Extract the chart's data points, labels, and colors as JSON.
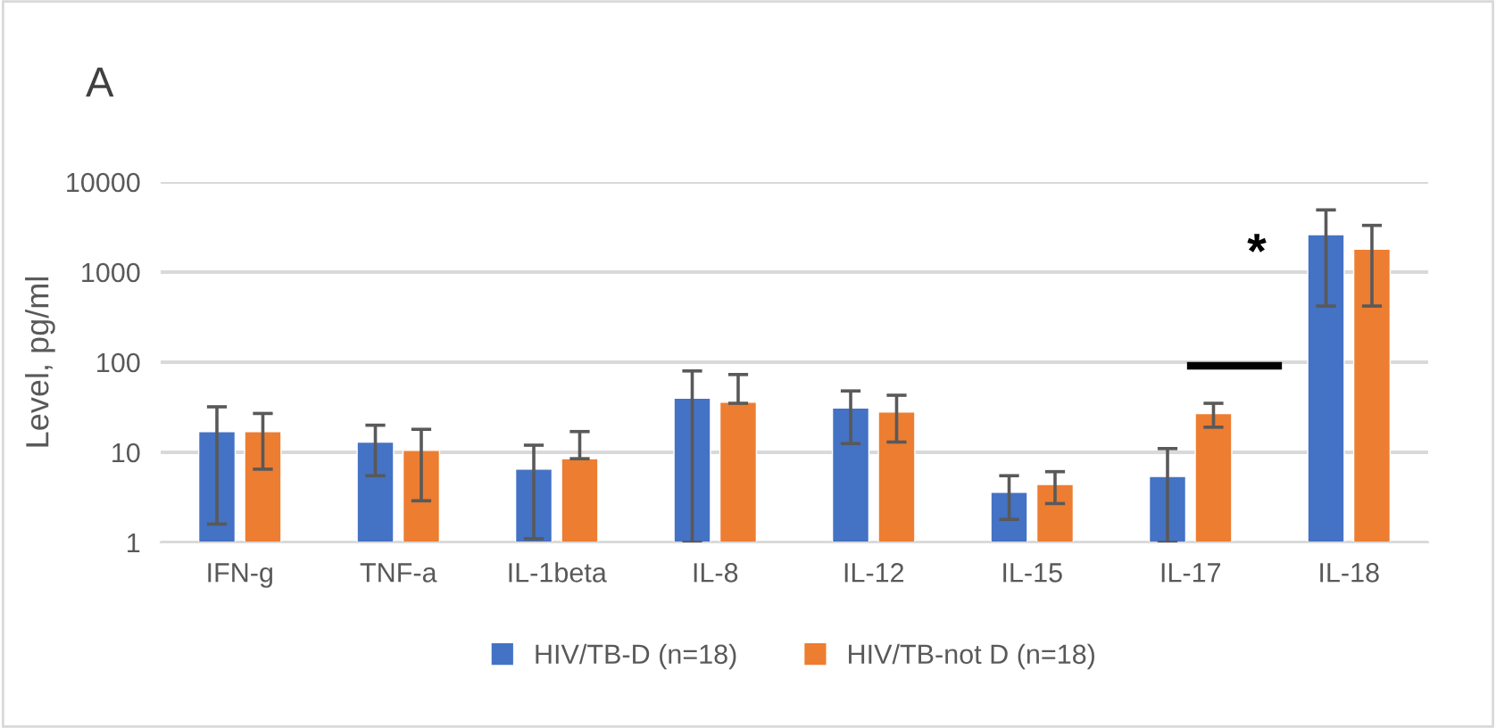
{
  "chart_data": {
    "type": "bar",
    "ylabel": "Level, pg/ml",
    "log": "y",
    "ylim": [
      1,
      10000
    ],
    "yticks": [
      1,
      10,
      100,
      1000,
      10000
    ],
    "grid": "y",
    "legend": "bottom",
    "categories": [
      "IFN-g",
      "TNF-a",
      "IL-1beta",
      "IL-8",
      "IL-12",
      "IL-15",
      "IL-17",
      "IL-18"
    ],
    "series": [
      {
        "name": "HIV/TB-D (n=18)",
        "color": "#4472c4",
        "values": [
          17,
          13,
          6.5,
          40,
          31,
          3.6,
          5.4,
          2600
        ],
        "errors": [
          [
            1.6,
            32
          ],
          [
            5.5,
            20
          ],
          [
            1.1,
            12
          ],
          [
            1,
            80
          ],
          [
            12.5,
            48
          ],
          [
            1.8,
            5.5
          ],
          [
            1,
            11
          ],
          [
            420,
            4900
          ]
        ]
      },
      {
        "name": "HIV/TB-not D (n=18)",
        "color": "#ed7d31",
        "values": [
          17,
          10.5,
          8.5,
          36,
          28,
          4.4,
          27,
          1800
        ],
        "errors": [
          [
            6.5,
            27
          ],
          [
            2.9,
            18
          ],
          [
            8.5,
            17
          ],
          [
            35,
            73
          ],
          [
            13,
            43
          ],
          [
            2.7,
            6.1
          ],
          [
            19,
            35
          ],
          [
            420,
            3300
          ]
        ]
      }
    ],
    "annotations": [
      "A",
      "*"
    ]
  }
}
